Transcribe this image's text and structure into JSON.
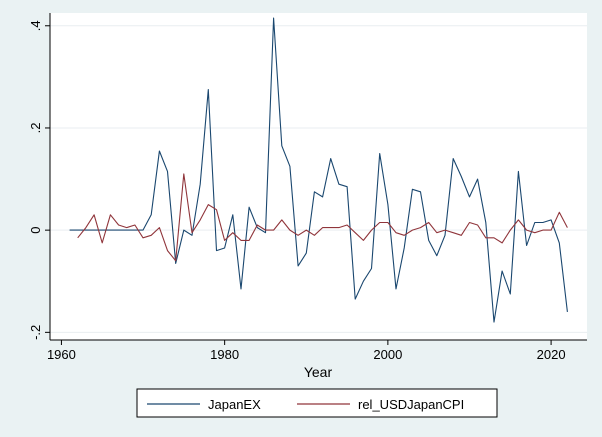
{
  "chart_data": {
    "type": "line",
    "xlabel": "Year",
    "ylabel": "",
    "xlim": [
      1958.6,
      2024.4
    ],
    "ylim": [
      -0.215,
      0.425
    ],
    "x_ticks": [
      1960,
      1980,
      2000,
      2020
    ],
    "x_tick_labels": [
      "1960",
      "1980",
      "2000",
      "2020"
    ],
    "y_ticks": [
      -0.2,
      0,
      0.2,
      0.4
    ],
    "y_tick_labels": [
      "-.2",
      "0",
      ".2",
      ".4"
    ],
    "grid": "horizontal",
    "legend_position": "bottom",
    "series": [
      {
        "name": "JapanEX",
        "color": "#1a476f",
        "points": [
          [
            1961,
            0.0
          ],
          [
            1962,
            0.0
          ],
          [
            1963,
            0.0
          ],
          [
            1964,
            0.0
          ],
          [
            1965,
            0.0
          ],
          [
            1966,
            0.0
          ],
          [
            1967,
            0.0
          ],
          [
            1968,
            0.0
          ],
          [
            1969,
            0.0
          ],
          [
            1970,
            0.0
          ],
          [
            1971,
            0.03
          ],
          [
            1972,
            0.155
          ],
          [
            1973,
            0.115
          ],
          [
            1974,
            -0.065
          ],
          [
            1975,
            0.0
          ],
          [
            1976,
            -0.01
          ],
          [
            1977,
            0.09
          ],
          [
            1978,
            0.275
          ],
          [
            1979,
            -0.04
          ],
          [
            1980,
            -0.035
          ],
          [
            1981,
            0.03
          ],
          [
            1982,
            -0.115
          ],
          [
            1983,
            0.045
          ],
          [
            1984,
            0.005
          ],
          [
            1985,
            -0.005
          ],
          [
            1986,
            0.415
          ],
          [
            1987,
            0.165
          ],
          [
            1988,
            0.125
          ],
          [
            1989,
            -0.07
          ],
          [
            1990,
            -0.045
          ],
          [
            1991,
            0.075
          ],
          [
            1992,
            0.065
          ],
          [
            1993,
            0.14
          ],
          [
            1994,
            0.09
          ],
          [
            1995,
            0.085
          ],
          [
            1996,
            -0.135
          ],
          [
            1997,
            -0.1
          ],
          [
            1998,
            -0.075
          ],
          [
            1999,
            0.15
          ],
          [
            2000,
            0.05
          ],
          [
            2001,
            -0.115
          ],
          [
            2002,
            -0.035
          ],
          [
            2003,
            0.08
          ],
          [
            2004,
            0.075
          ],
          [
            2005,
            -0.02
          ],
          [
            2006,
            -0.05
          ],
          [
            2007,
            -0.01
          ],
          [
            2008,
            0.14
          ],
          [
            2009,
            0.105
          ],
          [
            2010,
            0.065
          ],
          [
            2011,
            0.1
          ],
          [
            2012,
            0.015
          ],
          [
            2013,
            -0.18
          ],
          [
            2014,
            -0.08
          ],
          [
            2015,
            -0.125
          ],
          [
            2016,
            0.115
          ],
          [
            2017,
            -0.03
          ],
          [
            2018,
            0.015
          ],
          [
            2019,
            0.015
          ],
          [
            2020,
            0.02
          ],
          [
            2021,
            -0.025
          ],
          [
            2022,
            -0.16
          ]
        ]
      },
      {
        "name": "rel_USDJapanCPI",
        "color": "#90353b",
        "points": [
          [
            1962,
            -0.015
          ],
          [
            1963,
            0.005
          ],
          [
            1964,
            0.03
          ],
          [
            1965,
            -0.025
          ],
          [
            1966,
            0.03
          ],
          [
            1967,
            0.01
          ],
          [
            1968,
            0.005
          ],
          [
            1969,
            0.01
          ],
          [
            1970,
            -0.015
          ],
          [
            1971,
            -0.01
          ],
          [
            1972,
            0.005
          ],
          [
            1973,
            -0.04
          ],
          [
            1974,
            -0.06
          ],
          [
            1975,
            0.11
          ],
          [
            1976,
            -0.005
          ],
          [
            1977,
            0.02
          ],
          [
            1978,
            0.05
          ],
          [
            1979,
            0.04
          ],
          [
            1980,
            -0.02
          ],
          [
            1981,
            -0.005
          ],
          [
            1982,
            -0.02
          ],
          [
            1983,
            -0.02
          ],
          [
            1984,
            0.01
          ],
          [
            1985,
            0.0
          ],
          [
            1986,
            0.0
          ],
          [
            1987,
            0.02
          ],
          [
            1988,
            0.0
          ],
          [
            1989,
            -0.01
          ],
          [
            1990,
            0.0
          ],
          [
            1991,
            -0.01
          ],
          [
            1992,
            0.005
          ],
          [
            1993,
            0.005
          ],
          [
            1994,
            0.005
          ],
          [
            1995,
            0.01
          ],
          [
            1996,
            -0.005
          ],
          [
            1997,
            -0.02
          ],
          [
            1998,
            0.0
          ],
          [
            1999,
            0.015
          ],
          [
            2000,
            0.015
          ],
          [
            2001,
            -0.005
          ],
          [
            2002,
            -0.01
          ],
          [
            2003,
            0.0
          ],
          [
            2004,
            0.005
          ],
          [
            2005,
            0.015
          ],
          [
            2006,
            -0.005
          ],
          [
            2007,
            0.0
          ],
          [
            2008,
            -0.005
          ],
          [
            2009,
            -0.01
          ],
          [
            2010,
            0.015
          ],
          [
            2011,
            0.01
          ],
          [
            2012,
            -0.015
          ],
          [
            2013,
            -0.015
          ],
          [
            2014,
            -0.025
          ],
          [
            2015,
            0.0
          ],
          [
            2016,
            0.02
          ],
          [
            2017,
            0.0
          ],
          [
            2018,
            -0.005
          ],
          [
            2019,
            0.0
          ],
          [
            2020,
            0.0
          ],
          [
            2021,
            0.035
          ],
          [
            2022,
            0.005
          ]
        ]
      }
    ]
  }
}
